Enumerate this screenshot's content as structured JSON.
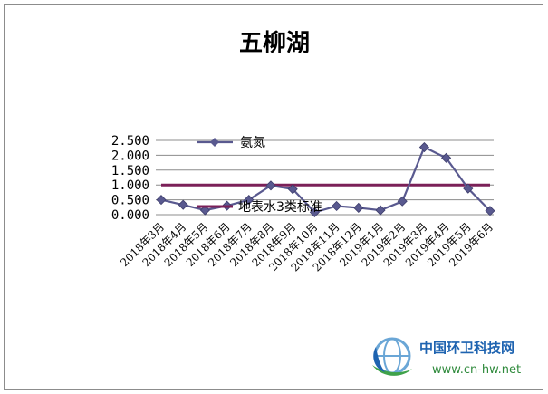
{
  "chart_data": {
    "type": "line",
    "title": "五柳湖",
    "categories": [
      "2018年3月",
      "2018年4月",
      "2018年5月",
      "2018年6月",
      "2018年7月",
      "2018年8月",
      "2018年9月",
      "2018年10月",
      "2018年11月",
      "2018年12月",
      "2019年1月",
      "2019年2月",
      "2019年3月",
      "2019年4月",
      "2019年5月",
      "2019年6月"
    ],
    "y_ticks": [
      "0.000",
      "0.500",
      "1.000",
      "1.500",
      "2.000",
      "2.500"
    ],
    "ylim": [
      0,
      2.5
    ],
    "grid": true,
    "legend_position": "inside-top-left",
    "series": [
      {
        "name": "氨氮",
        "color": "#59598f",
        "marker": "diamond",
        "values": [
          0.5,
          0.33,
          0.15,
          0.3,
          0.5,
          0.98,
          0.86,
          0.08,
          0.29,
          0.23,
          0.15,
          0.45,
          2.27,
          1.91,
          0.88,
          0.13
        ]
      },
      {
        "name": "地表水3类标准",
        "color": "#7b2058",
        "marker": "none",
        "values": [
          1,
          1,
          1,
          1,
          1,
          1,
          1,
          1,
          1,
          1,
          1,
          1,
          1,
          1,
          1,
          1
        ]
      }
    ]
  },
  "watermark": {
    "title": "中国环卫科技网",
    "url": "www.cn-hw.net",
    "logo_icon": "globe-leaf-icon"
  }
}
